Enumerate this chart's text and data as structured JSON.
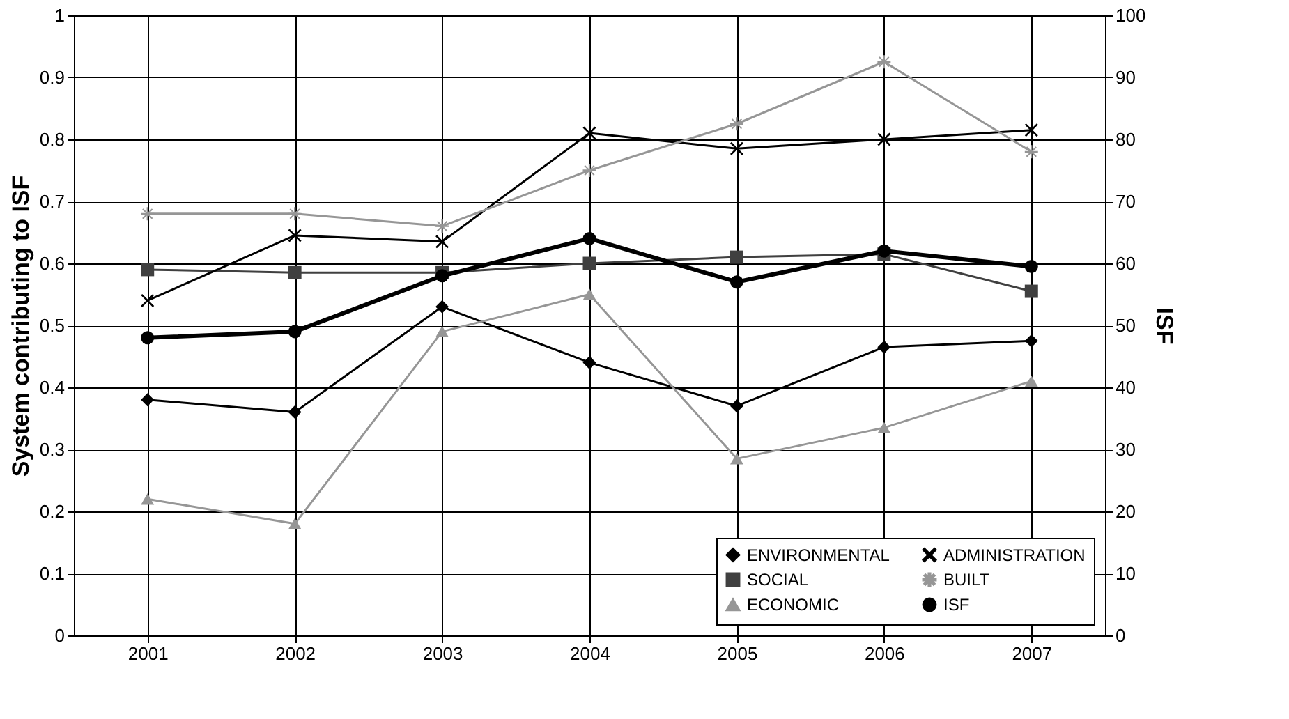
{
  "chart_data": {
    "type": "line",
    "ylabel": "System contributing to ISF",
    "y2label": "ISF",
    "categories": [
      "2001",
      "2002",
      "2003",
      "2004",
      "2005",
      "2006",
      "2007"
    ],
    "series": [
      {
        "name": "ENVIRONMENTAL",
        "color": "#000000",
        "marker": "diamond",
        "values": [
          0.38,
          0.36,
          0.53,
          0.44,
          0.37,
          0.465,
          0.475
        ]
      },
      {
        "name": "SOCIAL",
        "color": "#404040",
        "marker": "square",
        "values": [
          0.59,
          0.585,
          0.585,
          0.6,
          0.61,
          0.615,
          0.555
        ]
      },
      {
        "name": "ECONOMIC",
        "color": "#969696",
        "marker": "triangle",
        "values": [
          0.22,
          0.18,
          0.49,
          0.55,
          0.285,
          0.335,
          0.41
        ]
      },
      {
        "name": "ADMINISTRATION",
        "color": "#000000",
        "marker": "cross",
        "values": [
          0.54,
          0.645,
          0.635,
          0.81,
          0.785,
          0.8,
          0.815
        ]
      },
      {
        "name": "BUILT",
        "color": "#969696",
        "marker": "star",
        "values": [
          0.68,
          0.68,
          0.66,
          0.75,
          0.825,
          0.925,
          0.78
        ]
      },
      {
        "name": "ISF",
        "color": "#000000",
        "marker": "circle",
        "axis": "y2",
        "values": [
          48,
          49,
          58,
          64,
          57,
          62,
          59.5
        ]
      }
    ],
    "ylim": [
      0,
      1
    ],
    "yticks": [
      0,
      0.1,
      0.2,
      0.3,
      0.4,
      0.5,
      0.6,
      0.7,
      0.8,
      0.9,
      1
    ],
    "y2lim": [
      0,
      100
    ],
    "y2ticks": [
      0,
      10,
      20,
      30,
      40,
      50,
      60,
      70,
      80,
      90,
      100
    ],
    "grid": true,
    "legend": "bottom right"
  }
}
